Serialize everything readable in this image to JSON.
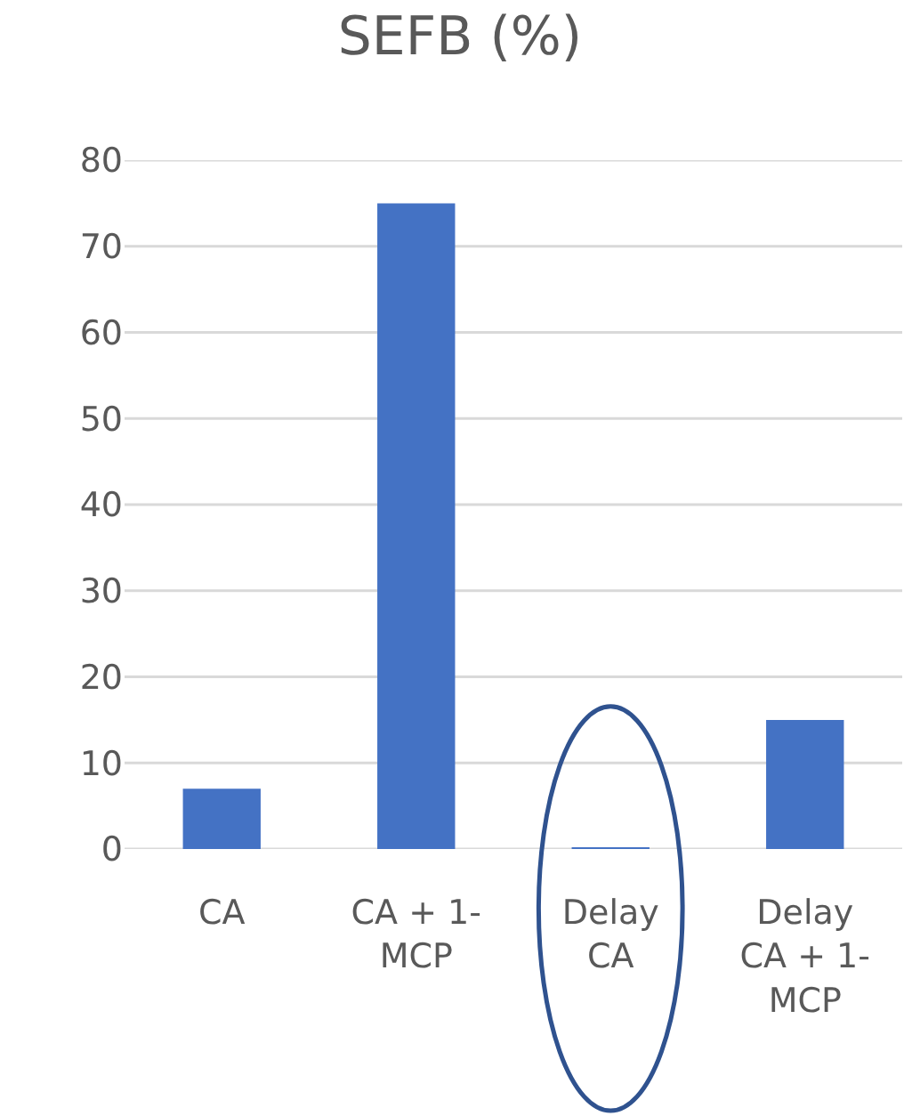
{
  "chart_data": {
    "type": "bar",
    "title": "SEFB (%)",
    "categories": [
      "CA",
      "CA + 1-MCP",
      "Delay CA",
      "Delay CA + 1-MCP"
    ],
    "values": [
      7,
      75,
      0.2,
      15
    ],
    "color": "#4472c4",
    "ylim": [
      0,
      80
    ],
    "yticks": [
      0,
      10,
      20,
      30,
      40,
      50,
      60,
      70,
      80
    ],
    "grid": "y"
  }
}
